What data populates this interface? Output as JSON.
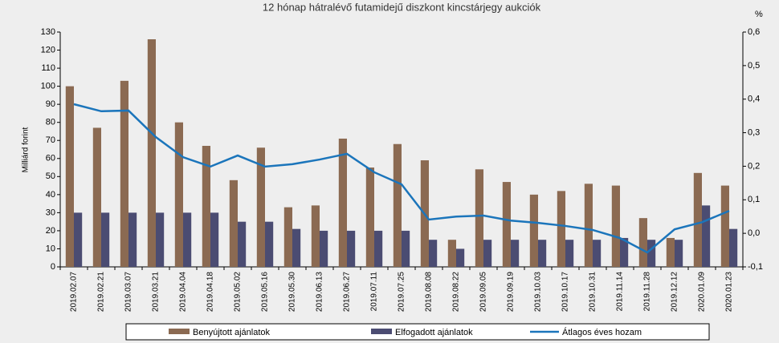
{
  "chart_data": {
    "type": "bar",
    "title": "12 hónap hátralévő futamidejű diszkont kincstárjegy aukciók",
    "y_label": "Milliárd forint",
    "y2_label": "%",
    "categories": [
      "2019.02.07",
      "2019.02.21",
      "2019.03.07",
      "2019.03.21",
      "2019.04.04",
      "2019.04.18",
      "2019.05.02",
      "2019.05.16",
      "2019.05.30",
      "2019.06.13",
      "2019.06.27",
      "2019.07.11",
      "2019.07.25",
      "2019.08.08",
      "2019.08.22",
      "2019.09.05",
      "2019.09.19",
      "2019.10.03",
      "2019.10.17",
      "2019.10.31",
      "2019.11.14",
      "2019.11.28",
      "2019.12.12",
      "2020.01.09",
      "2020.01.23"
    ],
    "series": [
      {
        "name": "Benyújtott ajánlatok",
        "type": "bar",
        "color": "#8b6a52",
        "values": [
          100,
          77,
          103,
          126,
          80,
          67,
          48,
          66,
          33,
          34,
          71,
          55,
          68,
          59,
          15,
          54,
          47,
          40,
          42,
          46,
          45,
          27,
          16,
          52,
          45
        ]
      },
      {
        "name": "Elfogadott ajánlatok",
        "type": "bar",
        "color": "#4b4c72",
        "values": [
          30,
          30,
          30,
          30,
          30,
          30,
          25,
          25,
          21,
          20,
          20,
          20,
          20,
          15,
          10,
          15,
          15,
          15,
          15,
          15,
          16,
          15,
          15,
          34,
          21
        ]
      },
      {
        "name": "Átlagos éves hozam",
        "type": "line",
        "axis": "y2",
        "color": "#1b75bb",
        "values": [
          0.385,
          0.364,
          0.366,
          0.287,
          0.227,
          0.199,
          0.232,
          0.199,
          0.206,
          0.22,
          0.237,
          0.182,
          0.146,
          0.041,
          0.05,
          0.053,
          0.038,
          0.031,
          0.022,
          0.01,
          -0.014,
          -0.057,
          0.012,
          0.033,
          0.067
        ]
      }
    ],
    "ylim": [
      0,
      130
    ],
    "yticks": [
      0,
      10,
      20,
      30,
      40,
      50,
      60,
      70,
      80,
      90,
      100,
      110,
      120,
      130
    ],
    "y2lim": [
      -0.1,
      0.6
    ],
    "y2ticks": [
      {
        "value": -0.1,
        "label": "-0,1"
      },
      {
        "value": 0,
        "label": "0,0"
      },
      {
        "value": 0.1,
        "label": "0,1"
      },
      {
        "value": 0.2,
        "label": "0,2"
      },
      {
        "value": 0.3,
        "label": "0,3"
      },
      {
        "value": 0.4,
        "label": "0,4"
      },
      {
        "value": 0.5,
        "label": "0,5"
      },
      {
        "value": 0.6,
        "label": "0,6"
      }
    ],
    "grid": false
  }
}
